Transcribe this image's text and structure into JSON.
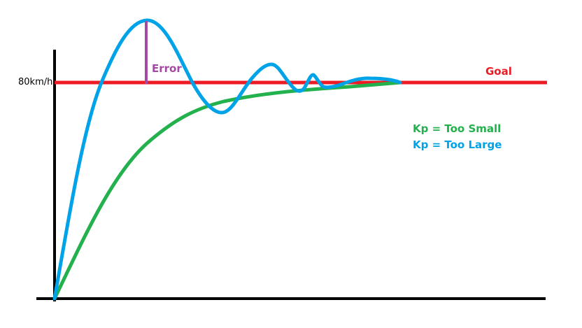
{
  "y_axis_label": "80km/h",
  "goal_label": "Goal",
  "error_label": "Error",
  "legend": [
    {
      "text": "Kp = Too Small",
      "color": "#22b14c"
    },
    {
      "text": "Kp = Too Large",
      "color": "#00a2e8"
    }
  ],
  "colors": {
    "goal": "#ed1c24",
    "error": "#a349a4",
    "axes": "#000000"
  }
}
